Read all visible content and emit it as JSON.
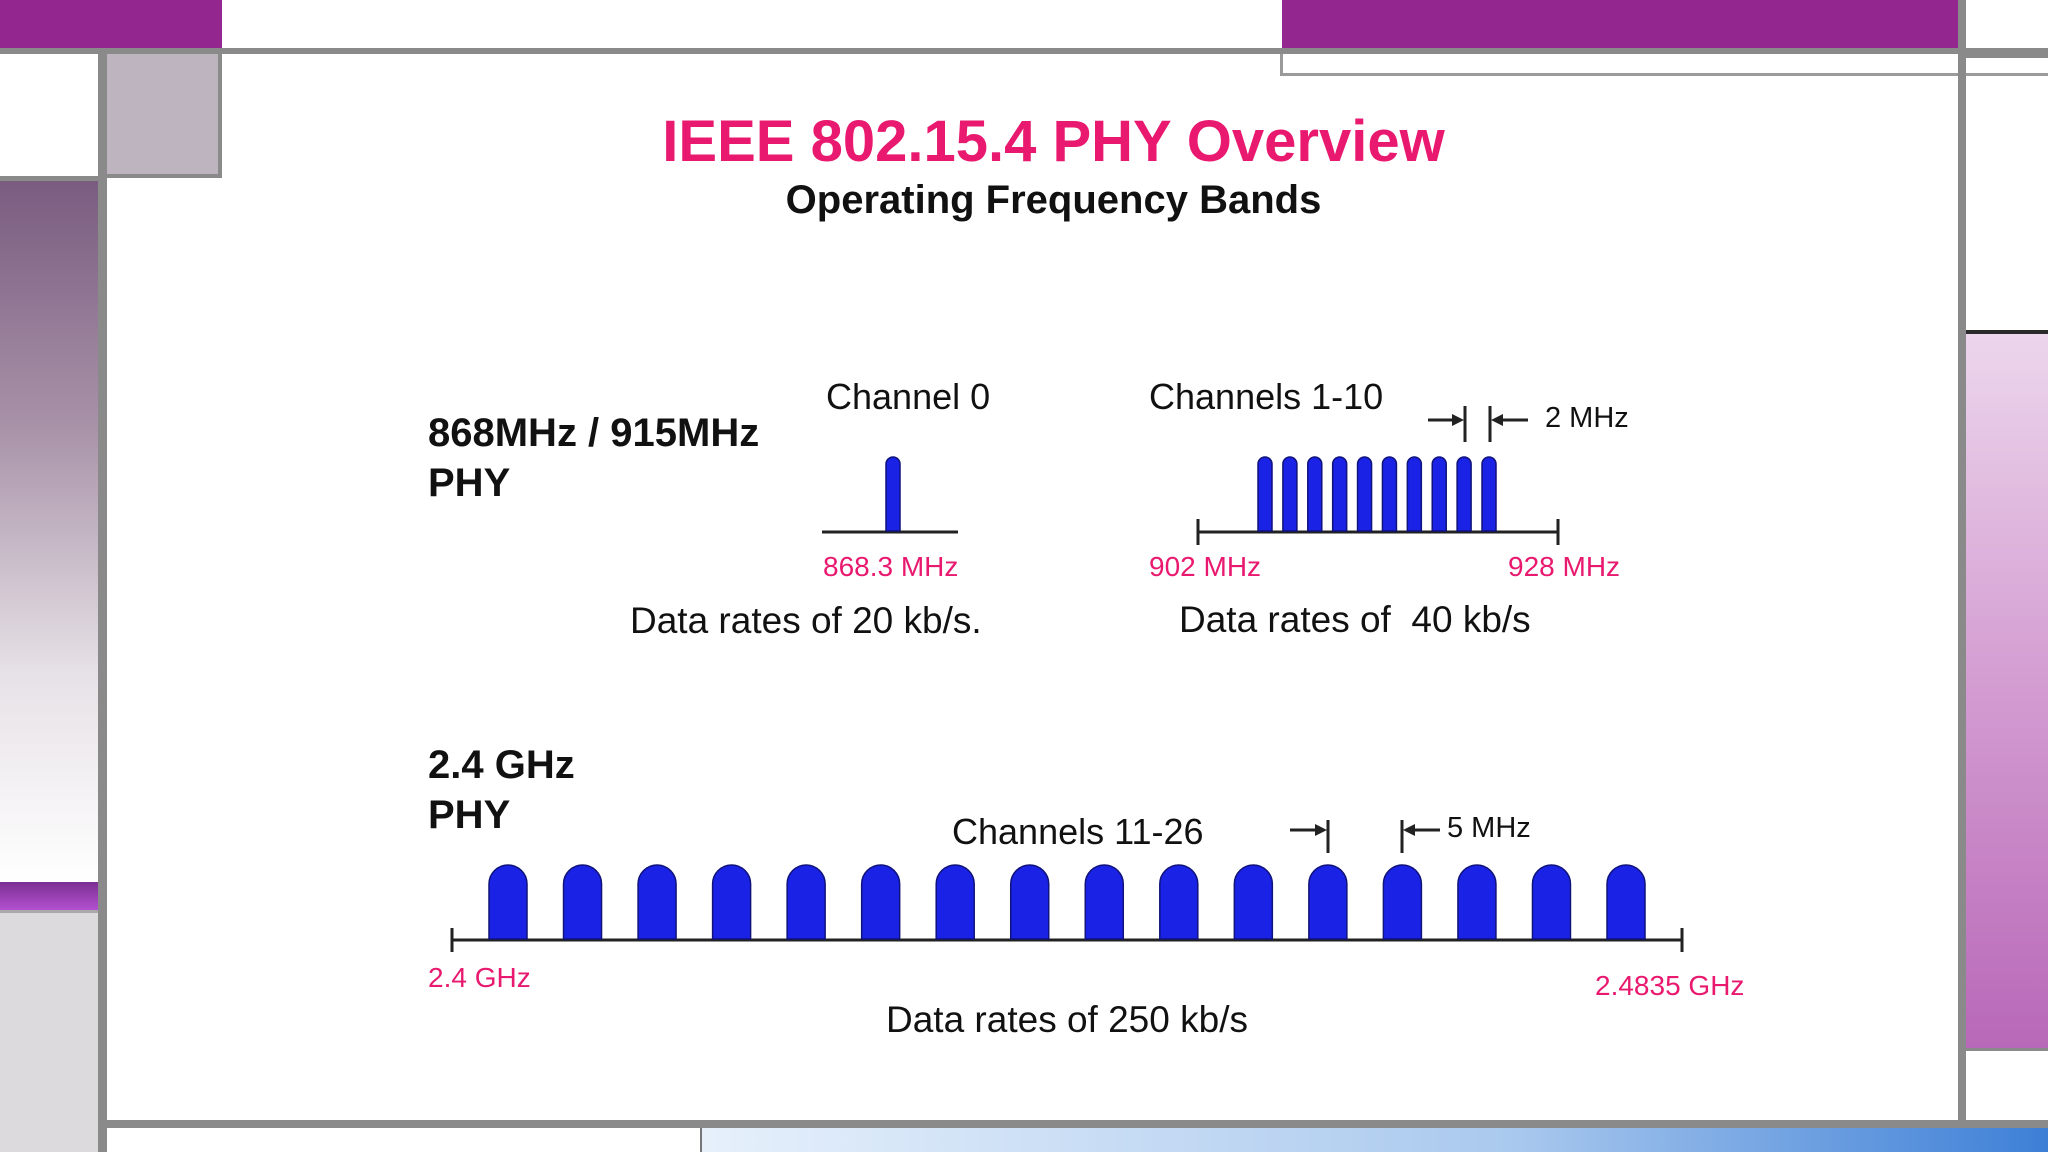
{
  "title": "IEEE 802.15.4 PHY Overview",
  "subtitle": "Operating Frequency Bands",
  "colors": {
    "title": "#e8196f",
    "freq_label": "#e8196f",
    "channel_fill": "#1a22e6",
    "accent_purple": "#93278f",
    "frame_gray": "#808080"
  },
  "band_868_915": {
    "phy_label_line1": "868MHz / 915MHz",
    "phy_label_line2": "PHY",
    "channel0": {
      "label": "Channel 0",
      "freq_label": "868.3 MHz",
      "channel_count": 1
    },
    "channels_1_10": {
      "label": "Channels 1-10",
      "spacing_label": "2 MHz",
      "start_freq": "902 MHz",
      "end_freq": "928 MHz",
      "channel_count": 10
    },
    "rate_868": "Data rates of 20 kb/s.",
    "rate_915": "Data rates of  40 kb/s"
  },
  "band_2400": {
    "phy_label_line1": "2.4 GHz",
    "phy_label_line2": "PHY",
    "label": "Channels 11-26",
    "spacing_label": "5 MHz",
    "start_freq": "2.4 GHz",
    "end_freq": "2.4835 GHz",
    "channel_count": 16,
    "rate": "Data rates of 250 kb/s"
  }
}
